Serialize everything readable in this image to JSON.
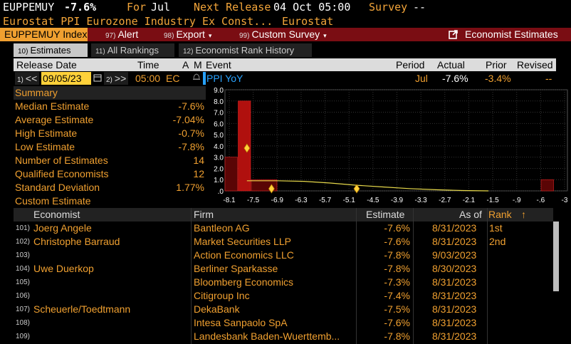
{
  "header": {
    "ticker": "EUPPEMUY",
    "value": "-7.6%",
    "for_label": "For",
    "for_period": "Jul",
    "next_release_label": "Next Release",
    "next_release_value": "04 Oct 05:00",
    "survey_label": "Survey",
    "survey_value": "--",
    "description": "Eurostat PPI Eurozone Industry Ex Const...",
    "source": "Eurostat"
  },
  "toolbar": {
    "index_label": "EUPPEMUY Index",
    "alert_fn": "97)",
    "alert_label": "Alert",
    "export_fn": "98)",
    "export_label": "Export",
    "custom_fn": "99)",
    "custom_label": "Custom Survey",
    "economist_label": "Economist Estimates"
  },
  "tabs": [
    {
      "fn": "10)",
      "label": "Estimates",
      "active": true
    },
    {
      "fn": "11)",
      "label": "All Rankings",
      "active": false
    },
    {
      "fn": "12)",
      "label": "Economist Rank History",
      "active": false
    }
  ],
  "columns": {
    "release_date": "Release Date",
    "time": "Time",
    "a": "A",
    "m": "M",
    "event": "Event",
    "period": "Period",
    "actual": "Actual",
    "prior": "Prior",
    "revised": "Revised"
  },
  "release_row": {
    "prev_fn": "1)",
    "prev_label": "<<",
    "date": "09/05/23",
    "next_fn": "2)",
    "next_label": ">>",
    "time": "05:00",
    "tz": "EC",
    "event": "PPI YoY",
    "period": "Jul",
    "actual": "-7.6%",
    "prior": "-3.4%",
    "revised": "--"
  },
  "summary": {
    "title": "Summary",
    "rows": [
      {
        "label": "Median Estimate",
        "value": "-7.6%"
      },
      {
        "label": "Average Estimate",
        "value": "-7.04%"
      },
      {
        "label": "High Estimate",
        "value": "-0.7%"
      },
      {
        "label": "Low Estimate",
        "value": "-7.8%"
      },
      {
        "label": "Number of Estimates",
        "value": "14"
      },
      {
        "label": "Qualified Economists",
        "value": "12"
      },
      {
        "label": "Standard Deviation",
        "value": "1.77%"
      },
      {
        "label": "Custom Estimate",
        "value": ""
      }
    ]
  },
  "chart_data": {
    "type": "bar",
    "title": "",
    "x_ticks": [
      "-8.1",
      "-7.5",
      "-6.9",
      "-6.3",
      "-5.7",
      "-5.1",
      "-4.5",
      "-3.9",
      "-3.3",
      "-2.7",
      "-2.1",
      "-1.5",
      "-.9",
      "-.6",
      "-3"
    ],
    "y_ticks": [
      "9.0",
      "8.0",
      "7.0",
      "6.0",
      "5.0",
      "4.0",
      "3.0",
      "2.0",
      "1.0",
      ".0"
    ],
    "ylim": [
      0,
      9
    ],
    "bins": [
      {
        "from": -8.1,
        "to": -7.8,
        "count": 3
      },
      {
        "from": -7.8,
        "to": -7.5,
        "count": 8
      },
      {
        "from": -7.5,
        "to": -6.9,
        "count": 1
      },
      {
        "from": -0.9,
        "to": -0.6,
        "count": 1
      }
    ],
    "markers": [
      {
        "x": -7.6,
        "y": 3.8,
        "label": "median"
      },
      {
        "x": -7.04,
        "y": 0,
        "label": "average"
      },
      {
        "x": -5.1,
        "y": 0,
        "label": "low-mark"
      }
    ],
    "curve": [
      [
        -7.6,
        0.9
      ],
      [
        -6.9,
        0.9
      ],
      [
        -6.3,
        0.85
      ],
      [
        -5.7,
        0.7
      ],
      [
        -5.1,
        0.5
      ],
      [
        -4.5,
        0.35
      ],
      [
        -3.9,
        0.2
      ],
      [
        -3.3,
        0.1
      ],
      [
        -2.7,
        0.03
      ],
      [
        -2.1,
        0.0
      ]
    ],
    "grid": true
  },
  "table": {
    "headers": {
      "economist": "Economist",
      "firm": "Firm",
      "estimate": "Estimate",
      "as_of": "As of",
      "rank": "Rank",
      "sort_indicator": "↑"
    },
    "rows": [
      {
        "idx": "101)",
        "economist": "Joerg Angele",
        "firm": "Bantleon AG",
        "estimate": "-7.6%",
        "as_of": "8/31/2023",
        "rank": "1st"
      },
      {
        "idx": "102)",
        "economist": "Christophe Barraud",
        "firm": "Market Securities LLP",
        "estimate": "-7.6%",
        "as_of": "8/31/2023",
        "rank": "2nd"
      },
      {
        "idx": "103)",
        "economist": "",
        "firm": "Action Economics LLC",
        "estimate": "-7.8%",
        "as_of": "9/03/2023",
        "rank": ""
      },
      {
        "idx": "104)",
        "economist": "Uwe Duerkop",
        "firm": "Berliner Sparkasse",
        "estimate": "-7.8%",
        "as_of": "8/30/2023",
        "rank": ""
      },
      {
        "idx": "105)",
        "economist": "",
        "firm": "Bloomberg Economics",
        "estimate": "-7.3%",
        "as_of": "8/31/2023",
        "rank": ""
      },
      {
        "idx": "106)",
        "economist": "",
        "firm": "Citigroup Inc",
        "estimate": "-7.4%",
        "as_of": "8/31/2023",
        "rank": ""
      },
      {
        "idx": "107)",
        "economist": "Scheuerle/Toedtmann",
        "firm": "DekaBank",
        "estimate": "-7.5%",
        "as_of": "8/31/2023",
        "rank": ""
      },
      {
        "idx": "108)",
        "economist": "",
        "firm": "Intesa Sanpaolo SpA",
        "estimate": "-7.6%",
        "as_of": "8/31/2023",
        "rank": ""
      },
      {
        "idx": "109)",
        "economist": "",
        "firm": "Landesbank Baden-Wuerttemb...",
        "estimate": "-7.8%",
        "as_of": "8/31/2023",
        "rank": ""
      }
    ]
  },
  "colors": {
    "amber": "#f0a030",
    "toolbar_red": "#7a0d13",
    "bar_dark_red": "#5a0505",
    "bar_red": "#b0100e",
    "event_blue": "#29a3ff",
    "input_yellow": "#ffd13a"
  }
}
